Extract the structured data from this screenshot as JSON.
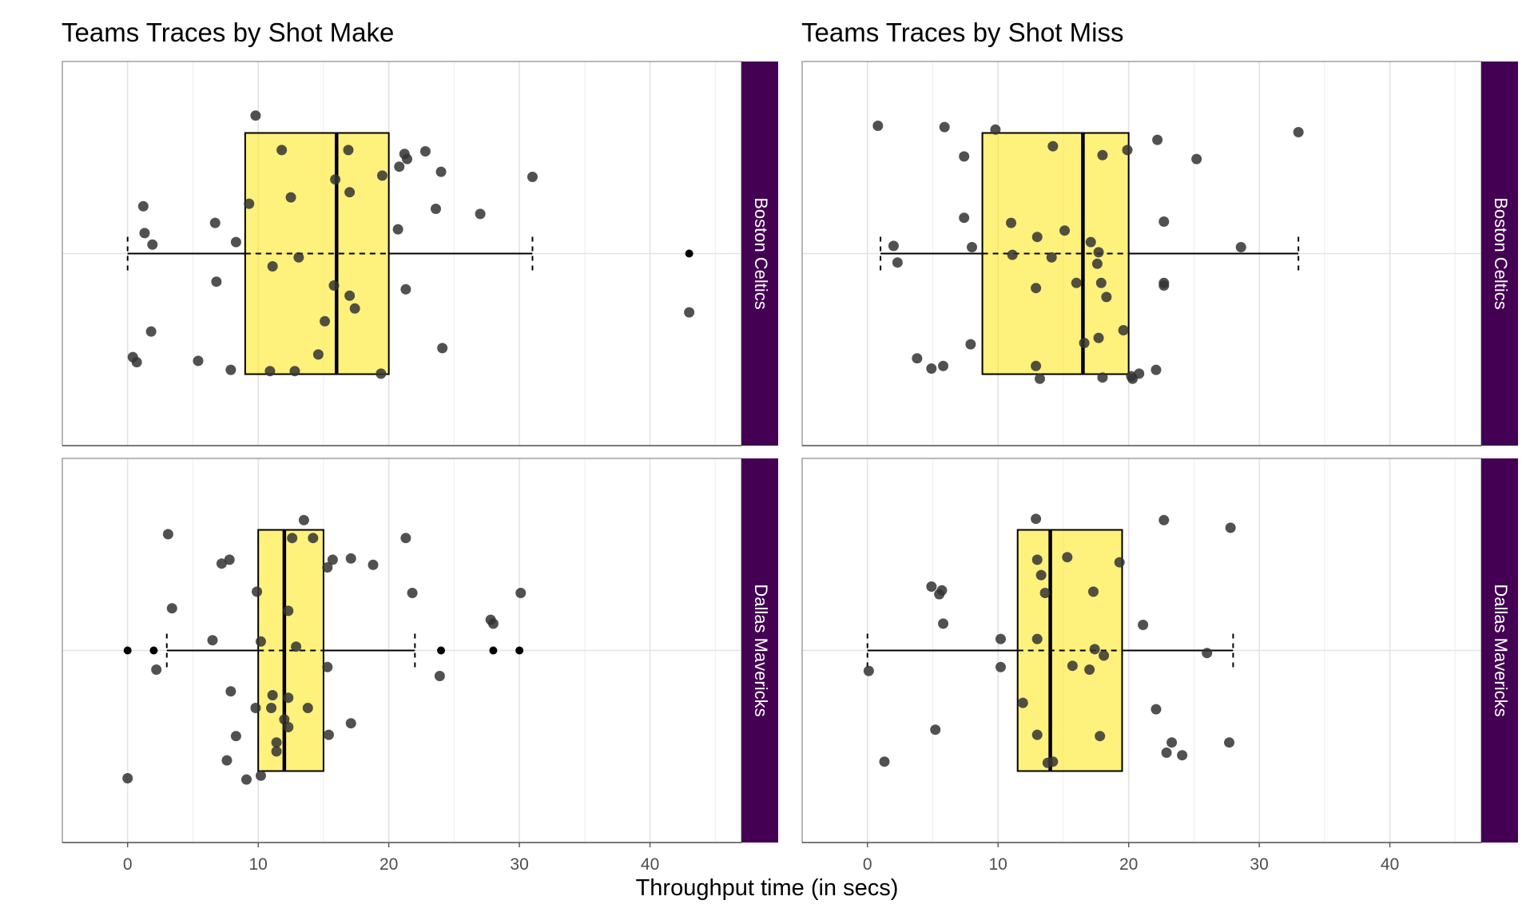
{
  "chart_data": {
    "type": "box",
    "xlabel": "Throughput time (in secs)",
    "xlim": [
      -5,
      47
    ],
    "xticks": [
      0,
      10,
      20,
      30,
      40
    ],
    "grid": true,
    "colors": {
      "box_fill": "#FDE725",
      "point": "#333333",
      "strip": "#440154",
      "strip_text": "#FFFFFF"
    },
    "panels": [
      {
        "title": "Teams Traces by Shot Make",
        "facets": [
          {
            "team": "Boston Celtics",
            "box": {
              "q1": 9,
              "median": 16,
              "q3": 20,
              "whisker_low": 0,
              "whisker_high": 31
            },
            "outliers": [
              43
            ],
            "points": [
              [
                9.8,
                1.08
              ],
              [
                11.8,
                0.81
              ],
              [
                16.9,
                0.81
              ],
              [
                21.2,
                0.78
              ],
              [
                22.8,
                0.8
              ],
              [
                21.4,
                0.74
              ],
              [
                20.8,
                0.68
              ],
              [
                19.5,
                0.61
              ],
              [
                17.0,
                0.48
              ],
              [
                15.9,
                0.58
              ],
              [
                12.5,
                0.44
              ],
              [
                24.0,
                0.64
              ],
              [
                31.0,
                0.6
              ],
              [
                1.2,
                0.37
              ],
              [
                9.3,
                0.39
              ],
              [
                20.7,
                0.19
              ],
              [
                23.6,
                0.35
              ],
              [
                27.0,
                0.31
              ],
              [
                6.7,
                0.24
              ],
              [
                1.3,
                0.16
              ],
              [
                8.3,
                0.09
              ],
              [
                1.9,
                0.07
              ],
              [
                13.1,
                -0.03
              ],
              [
                11.1,
                -0.1
              ],
              [
                6.8,
                -0.22
              ],
              [
                15.8,
                -0.25
              ],
              [
                21.3,
                -0.28
              ],
              [
                17.0,
                -0.33
              ],
              [
                17.4,
                -0.43
              ],
              [
                15.1,
                -0.53
              ],
              [
                43.0,
                -0.46
              ],
              [
                1.8,
                -0.61
              ],
              [
                24.1,
                -0.74
              ],
              [
                14.6,
                -0.79
              ],
              [
                0.4,
                -0.81
              ],
              [
                0.7,
                -0.85
              ],
              [
                5.4,
                -0.84
              ],
              [
                7.9,
                -0.91
              ],
              [
                10.9,
                -0.92
              ],
              [
                12.8,
                -0.92
              ],
              [
                19.4,
                -0.94
              ]
            ]
          },
          {
            "team": "Dallas Mavericks",
            "box": {
              "q1": 10,
              "median": 12,
              "q3": 15,
              "whisker_low": 3,
              "whisker_high": 22
            },
            "outliers": [
              0,
              2,
              24,
              28,
              30
            ],
            "points": [
              [
                3.1,
                0.91
              ],
              [
                13.5,
                1.02
              ],
              [
                12.6,
                0.88
              ],
              [
                14.2,
                0.88
              ],
              [
                21.3,
                0.88
              ],
              [
                7.8,
                0.71
              ],
              [
                7.2,
                0.68
              ],
              [
                15.7,
                0.71
              ],
              [
                15.3,
                0.65
              ],
              [
                17.1,
                0.72
              ],
              [
                18.8,
                0.67
              ],
              [
                9.9,
                0.46
              ],
              [
                21.8,
                0.45
              ],
              [
                30.1,
                0.45
              ],
              [
                3.4,
                0.33
              ],
              [
                12.3,
                0.31
              ],
              [
                27.8,
                0.24
              ],
              [
                28.0,
                0.21
              ],
              [
                6.5,
                0.08
              ],
              [
                10.2,
                0.07
              ],
              [
                12.9,
                0.03
              ],
              [
                2.2,
                -0.15
              ],
              [
                23.9,
                -0.2
              ],
              [
                15.3,
                -0.13
              ],
              [
                7.9,
                -0.32
              ],
              [
                11.1,
                -0.35
              ],
              [
                12.3,
                -0.37
              ],
              [
                9.8,
                -0.45
              ],
              [
                11.0,
                -0.45
              ],
              [
                13.8,
                -0.45
              ],
              [
                12.0,
                -0.54
              ],
              [
                17.1,
                -0.57
              ],
              [
                12.3,
                -0.6
              ],
              [
                15.4,
                -0.66
              ],
              [
                8.3,
                -0.67
              ],
              [
                11.4,
                -0.72
              ],
              [
                11.4,
                -0.79
              ],
              [
                7.6,
                -0.86
              ],
              [
                0.0,
                -1.0
              ],
              [
                9.1,
                -1.01
              ],
              [
                10.2,
                -0.98
              ]
            ]
          }
        ]
      },
      {
        "title": "Teams Traces by Shot Miss",
        "facets": [
          {
            "team": "Boston Celtics",
            "box": {
              "q1": 8.8,
              "median": 16.5,
              "q3": 20,
              "whisker_low": 1,
              "whisker_high": 33
            },
            "outliers": [],
            "points": [
              [
                0.8,
                1.0
              ],
              [
                5.9,
                0.99
              ],
              [
                9.8,
                0.97
              ],
              [
                33.0,
                0.95
              ],
              [
                22.2,
                0.89
              ],
              [
                19.9,
                0.81
              ],
              [
                7.4,
                0.76
              ],
              [
                25.2,
                0.74
              ],
              [
                18.0,
                0.77
              ],
              [
                14.2,
                0.84
              ],
              [
                7.4,
                0.28
              ],
              [
                11.0,
                0.24
              ],
              [
                22.7,
                0.25
              ],
              [
                15.1,
                0.18
              ],
              [
                13.0,
                0.13
              ],
              [
                8.0,
                0.05
              ],
              [
                2.0,
                0.06
              ],
              [
                28.6,
                0.05
              ],
              [
                17.1,
                0.09
              ],
              [
                14.1,
                -0.03
              ],
              [
                17.7,
                0.01
              ],
              [
                11.1,
                -0.01
              ],
              [
                17.6,
                -0.08
              ],
              [
                2.3,
                -0.07
              ],
              [
                16.0,
                -0.23
              ],
              [
                17.9,
                -0.23
              ],
              [
                22.7,
                -0.23
              ],
              [
                22.7,
                -0.25
              ],
              [
                12.9,
                -0.27
              ],
              [
                18.3,
                -0.34
              ],
              [
                19.6,
                -0.6
              ],
              [
                17.7,
                -0.66
              ],
              [
                16.6,
                -0.7
              ],
              [
                7.9,
                -0.71
              ],
              [
                3.8,
                -0.82
              ],
              [
                5.8,
                -0.88
              ],
              [
                4.9,
                -0.9
              ],
              [
                12.9,
                -0.88
              ],
              [
                13.2,
                -0.98
              ],
              [
                18.0,
                -0.97
              ],
              [
                20.2,
                -0.96
              ],
              [
                20.3,
                -0.98
              ],
              [
                20.8,
                -0.94
              ],
              [
                22.1,
                -0.91
              ]
            ]
          },
          {
            "team": "Dallas Mavericks",
            "box": {
              "q1": 11.5,
              "median": 14,
              "q3": 19.5,
              "whisker_low": 0,
              "whisker_high": 28
            },
            "outliers": [],
            "points": [
              [
                12.9,
                1.03
              ],
              [
                22.7,
                1.02
              ],
              [
                27.8,
                0.96
              ],
              [
                15.3,
                0.73
              ],
              [
                13.0,
                0.71
              ],
              [
                19.3,
                0.69
              ],
              [
                13.3,
                0.59
              ],
              [
                4.9,
                0.5
              ],
              [
                5.7,
                0.47
              ],
              [
                5.5,
                0.44
              ],
              [
                13.6,
                0.45
              ],
              [
                17.3,
                0.46
              ],
              [
                5.8,
                0.21
              ],
              [
                21.1,
                0.2
              ],
              [
                10.2,
                0.09
              ],
              [
                13.0,
                0.09
              ],
              [
                17.4,
                0.01
              ],
              [
                18.1,
                -0.04
              ],
              [
                26.0,
                -0.02
              ],
              [
                15.7,
                -0.12
              ],
              [
                17.0,
                -0.15
              ],
              [
                0.1,
                -0.16
              ],
              [
                10.2,
                -0.13
              ],
              [
                11.9,
                -0.41
              ],
              [
                22.1,
                -0.46
              ],
              [
                5.2,
                -0.62
              ],
              [
                13.0,
                -0.66
              ],
              [
                17.8,
                -0.67
              ],
              [
                23.3,
                -0.72
              ],
              [
                27.7,
                -0.72
              ],
              [
                22.9,
                -0.8
              ],
              [
                24.1,
                -0.82
              ],
              [
                1.3,
                -0.87
              ],
              [
                13.8,
                -0.88
              ],
              [
                14.2,
                -0.87
              ]
            ]
          }
        ]
      }
    ]
  }
}
